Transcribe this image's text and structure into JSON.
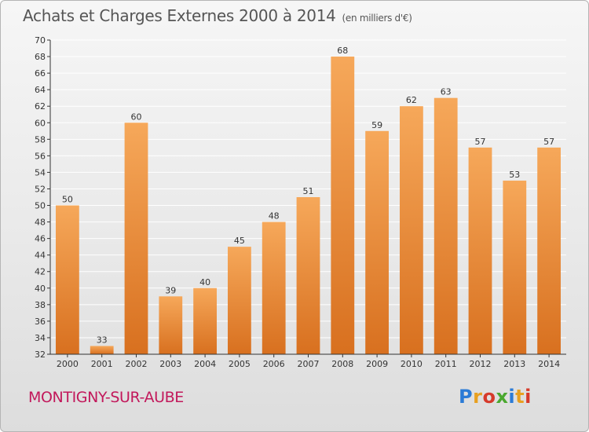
{
  "title": "Achats et Charges Externes 2000 à 2014",
  "unit": "(en milliers d'€)",
  "location": "MONTIGNY-SUR-AUBE",
  "logo_text": "Proxiti",
  "colors": {
    "bar_light": "#f6a85a",
    "bar_dark": "#d8701f",
    "grid": "#ffffff",
    "axis": "#333333",
    "footer": "#c2185b"
  },
  "chart_data": {
    "type": "bar",
    "categories": [
      "2000",
      "2001",
      "2002",
      "2003",
      "2004",
      "2005",
      "2006",
      "2007",
      "2008",
      "2009",
      "2010",
      "2011",
      "2012",
      "2013",
      "2014"
    ],
    "values": [
      50,
      33,
      60,
      39,
      40,
      45,
      48,
      51,
      68,
      59,
      62,
      63,
      57,
      53,
      57
    ],
    "ylim": [
      32,
      70
    ],
    "yticks": [
      32,
      34,
      36,
      38,
      40,
      42,
      44,
      46,
      48,
      50,
      52,
      54,
      56,
      58,
      60,
      62,
      64,
      66,
      68,
      70
    ],
    "grid": true,
    "data_labels": true
  }
}
